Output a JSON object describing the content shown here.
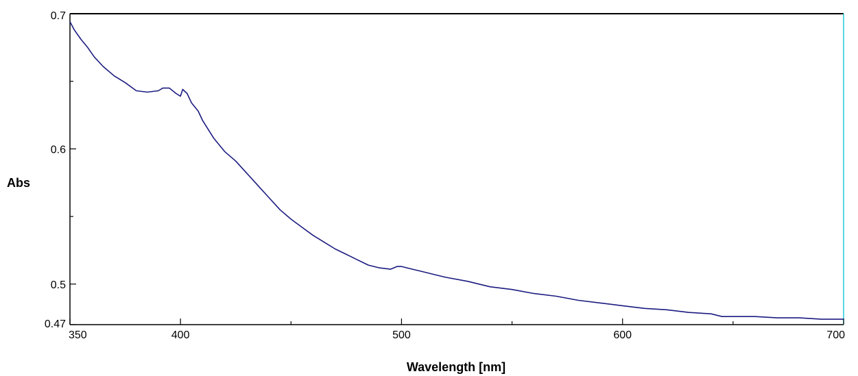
{
  "chart_data": {
    "type": "line",
    "title": "",
    "xlabel": "Wavelength [nm]",
    "ylabel": "Abs",
    "xlim": [
      350,
      700
    ],
    "ylim": [
      0.47,
      0.7
    ],
    "x_ticks": [
      {
        "value": 350,
        "label": "350"
      },
      {
        "value": 400,
        "label": "400"
      },
      {
        "value": 500,
        "label": "500"
      },
      {
        "value": 600,
        "label": "600"
      },
      {
        "value": 700,
        "label": "700"
      }
    ],
    "x_minor_ticks": [
      450,
      550,
      650
    ],
    "y_ticks": [
      {
        "value": 0.47,
        "label": "0.47"
      },
      {
        "value": 0.5,
        "label": "0.5"
      },
      {
        "value": 0.6,
        "label": "0.6"
      },
      {
        "value": 0.7,
        "label": "0.7"
      }
    ],
    "y_minor_ticks": [
      0.55,
      0.65
    ],
    "grid": false,
    "legend": "none",
    "colors": {
      "line": "#1a1a80",
      "axis": "#000000",
      "right_border": "#22c8d8"
    },
    "series": [
      {
        "x": [
          350,
          352,
          355,
          358,
          361,
          365,
          370,
          375,
          380,
          385,
          390,
          392,
          395,
          398,
          400,
          401,
          403,
          405,
          408,
          410,
          415,
          420,
          425,
          430,
          435,
          440,
          445,
          450,
          455,
          460,
          465,
          470,
          475,
          480,
          485,
          490,
          495,
          498,
          500,
          505,
          510,
          515,
          520,
          530,
          540,
          550,
          560,
          570,
          580,
          590,
          600,
          610,
          620,
          630,
          640,
          645,
          650,
          660,
          670,
          680,
          690,
          700
        ],
        "y": [
          0.694,
          0.688,
          0.681,
          0.675,
          0.668,
          0.661,
          0.654,
          0.649,
          0.643,
          0.642,
          0.643,
          0.645,
          0.645,
          0.641,
          0.639,
          0.644,
          0.641,
          0.634,
          0.628,
          0.621,
          0.608,
          0.598,
          0.591,
          0.582,
          0.573,
          0.564,
          0.555,
          0.548,
          0.542,
          0.536,
          0.531,
          0.526,
          0.522,
          0.518,
          0.514,
          0.512,
          0.511,
          0.513,
          0.513,
          0.511,
          0.509,
          0.507,
          0.505,
          0.502,
          0.498,
          0.496,
          0.493,
          0.491,
          0.488,
          0.486,
          0.484,
          0.482,
          0.481,
          0.479,
          0.478,
          0.476,
          0.476,
          0.476,
          0.475,
          0.475,
          0.474,
          0.474
        ]
      }
    ]
  }
}
